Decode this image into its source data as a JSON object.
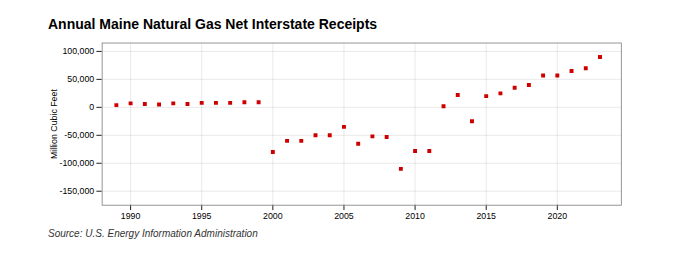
{
  "chart_data": {
    "type": "scatter",
    "title": "Annual Maine Natural Gas Net Interstate Receipts",
    "ylabel": "Million Cubic Feet",
    "source": "Source: U.S. Energy Information Administration",
    "color": "#cc0000",
    "marker": "square",
    "grid": true,
    "x": [
      1989,
      1990,
      1991,
      1992,
      1993,
      1994,
      1995,
      1996,
      1997,
      1998,
      1999,
      2000,
      2001,
      2002,
      2003,
      2004,
      2005,
      2006,
      2007,
      2008,
      2009,
      2010,
      2011,
      2012,
      2013,
      2014,
      2015,
      2016,
      2017,
      2018,
      2019,
      2020,
      2021,
      2022,
      2023
    ],
    "values": [
      4000,
      7000,
      6000,
      5000,
      7000,
      6000,
      8000,
      8000,
      8000,
      9000,
      9000,
      -80000,
      -60000,
      -60000,
      -50000,
      -50000,
      -35000,
      -65000,
      -52000,
      -53000,
      -110000,
      -78000,
      -78000,
      2000,
      22000,
      -25000,
      20000,
      25000,
      35000,
      40000,
      57000,
      57000,
      65000,
      70000,
      90000
    ],
    "xlim": [
      1988,
      2024.5
    ],
    "xticks": [
      1990,
      1995,
      2000,
      2005,
      2010,
      2015,
      2020
    ],
    "ylim": [
      -175000,
      115000
    ],
    "yticks": [
      {
        "value": -150000,
        "label": "-150,000"
      },
      {
        "value": -100000,
        "label": "-100,000"
      },
      {
        "value": -50000,
        "label": "-50,000"
      },
      0,
      {
        "value": 50000,
        "label": "50,000"
      },
      {
        "value": 100000,
        "label": "100,000"
      }
    ]
  }
}
